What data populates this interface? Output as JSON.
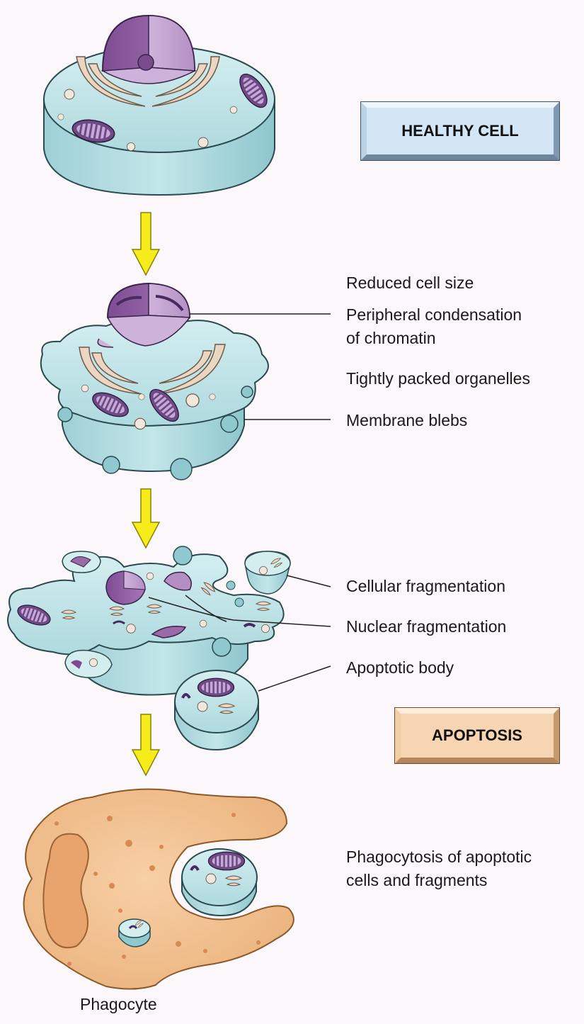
{
  "boxes": {
    "healthy_cell": "HEALTHY CELL",
    "apoptosis": "APOPTOSIS"
  },
  "labels": {
    "reduced_size": "Reduced cell size",
    "peripheral_line1": "Peripheral condensation",
    "peripheral_line2": "of chromatin",
    "tightly_packed": "Tightly packed organelles",
    "membrane_blebs": "Membrane blebs",
    "cellular_frag": "Cellular fragmentation",
    "nuclear_frag": "Nuclear fragmentation",
    "apoptotic_body": "Apoptotic body",
    "phago_line1": "Phagocytosis of apoptotic",
    "phago_line2": "cells and fragments",
    "phagocyte": "Phagocyte"
  },
  "colors": {
    "cytoplasm": "#bfe3e6",
    "membrane_side": "#7fc0c8",
    "nucleus": "#9a6aa8",
    "golgi": "#ecd6c2",
    "arrow": "#f6ec1c",
    "phagocyte": "#f2c08c"
  }
}
